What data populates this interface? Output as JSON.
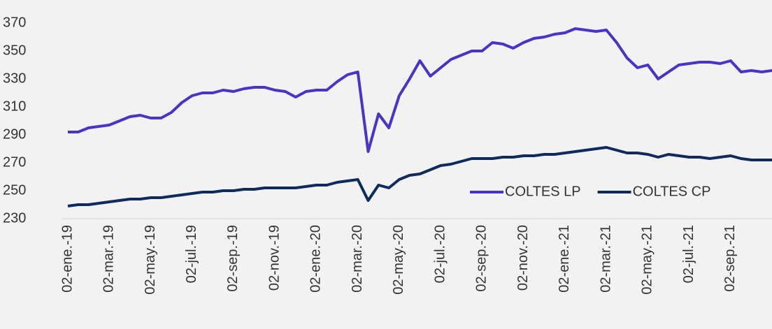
{
  "chart_data": {
    "type": "line",
    "categories": [
      "02-ene.-19",
      null,
      null,
      null,
      "02-mar.-19",
      null,
      null,
      null,
      "02-may.-19",
      null,
      null,
      null,
      "02-jul.-19",
      null,
      null,
      null,
      "02-sep.-19",
      null,
      null,
      null,
      "02-nov.-19",
      null,
      null,
      null,
      "02-ene.-20",
      null,
      null,
      null,
      "02-mar.-20",
      null,
      null,
      null,
      "02-may.-20",
      null,
      null,
      null,
      "02-jul.-20",
      null,
      null,
      null,
      "02-sep.-20",
      null,
      null,
      null,
      "02-nov.-20",
      null,
      null,
      null,
      "02-ene.-21",
      null,
      null,
      null,
      "02-mar.-21",
      null,
      null,
      null,
      "02-may.-21",
      null,
      null,
      null,
      "02-jul.-21",
      null,
      null,
      null,
      "02-sep.-21",
      null,
      null,
      null,
      null
    ],
    "series": [
      {
        "name": "COLTES LP",
        "color": "#4b32c8",
        "values": [
          292,
          292,
          295,
          296,
          297,
          300,
          303,
          304,
          302,
          302,
          306,
          313,
          318,
          320,
          320,
          322,
          321,
          323,
          324,
          324,
          322,
          321,
          317,
          321,
          322,
          322,
          328,
          333,
          335,
          278,
          305,
          295,
          318,
          330,
          343,
          332,
          338,
          344,
          347,
          350,
          350,
          356,
          355,
          352,
          356,
          359,
          360,
          362,
          363,
          366,
          365,
          364,
          365,
          356,
          345,
          338,
          340,
          330,
          335,
          340,
          341,
          342,
          342,
          341,
          343,
          335,
          336,
          335,
          336
        ]
      },
      {
        "name": "COLTES CP",
        "color": "#0f2b5e",
        "values": [
          239,
          240,
          240,
          241,
          242,
          243,
          244,
          244,
          245,
          245,
          246,
          247,
          248,
          249,
          249,
          250,
          250,
          251,
          251,
          252,
          252,
          252,
          252,
          253,
          254,
          254,
          256,
          257,
          258,
          243,
          254,
          252,
          258,
          261,
          262,
          265,
          268,
          269,
          271,
          273,
          273,
          273,
          274,
          274,
          275,
          275,
          276,
          276,
          277,
          278,
          279,
          280,
          281,
          279,
          277,
          277,
          276,
          274,
          276,
          275,
          274,
          274,
          273,
          274,
          275,
          273,
          272,
          272,
          272
        ]
      }
    ],
    "ylim": [
      230,
      370
    ],
    "yticks": [
      230,
      250,
      270,
      290,
      310,
      330,
      350,
      370
    ],
    "grid": false,
    "legend": "lower right"
  }
}
